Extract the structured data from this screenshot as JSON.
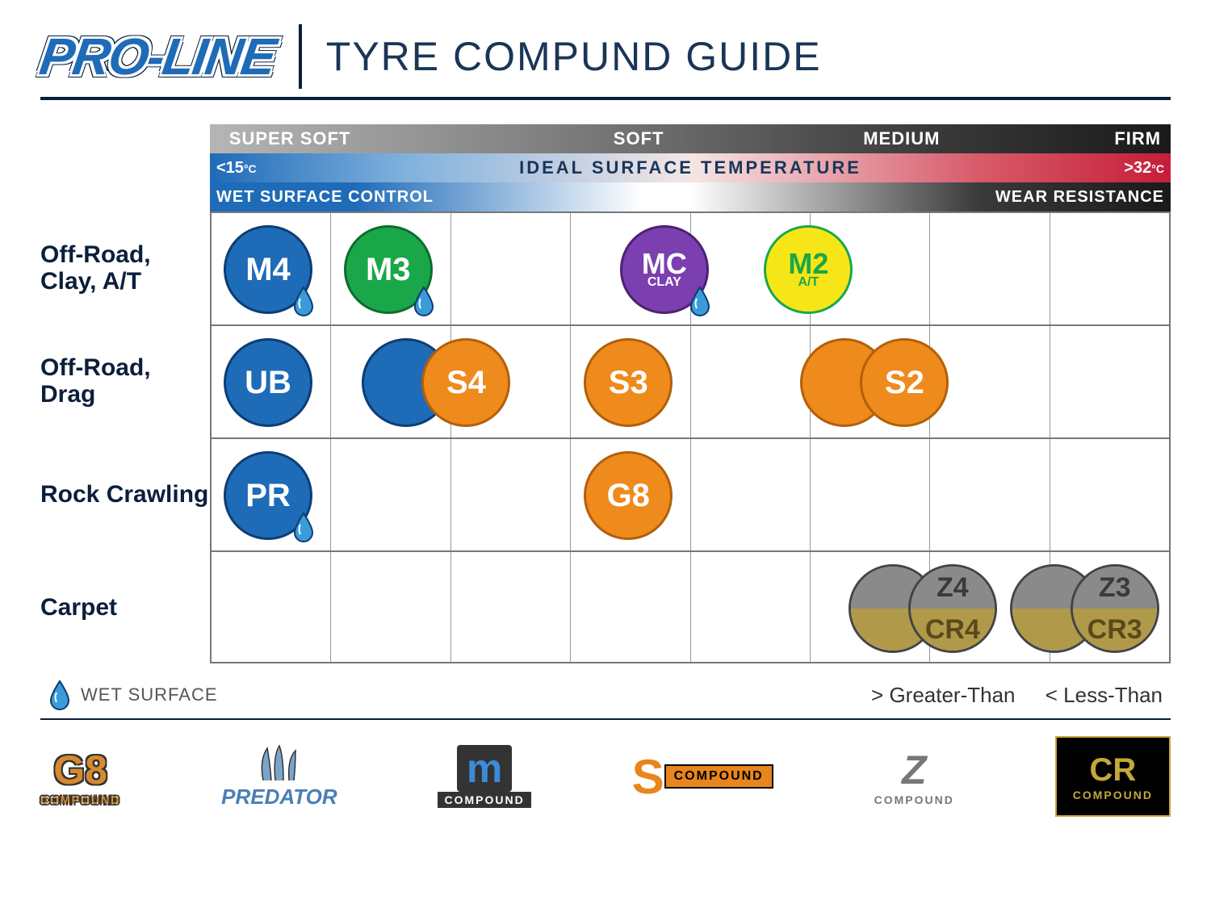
{
  "header": {
    "logo_text": "PRO-LINE",
    "title": "TYRE COMPUND GUIDE"
  },
  "hardness_scale": {
    "labels": [
      "SUPER SOFT",
      "SOFT",
      "MEDIUM",
      "FIRM"
    ],
    "positions_pct": [
      2,
      42,
      68,
      94
    ],
    "grad_bg": "linear-gradient(90deg, #b5b5b5 0%, #888 30%, #666 50%, #3a3a3a 75%, #1a1a1a 100%)"
  },
  "temp_scale": {
    "left_label": "<15",
    "right_label": ">32",
    "unit": "°C",
    "mid_label": "IDEAL SURFACE TEMPERATURE",
    "gradient": "linear-gradient(90deg, #1e6bb8 0%, #7fb0dd 20%, #f5e6e6 50%, #d85a6a 80%, #c41e3a 100%)"
  },
  "dual_scale": {
    "left_label": "WET SURFACE CONTROL",
    "right_label": "WEAR RESISTANCE"
  },
  "row_labels": [
    "Off-Road, Clay, A/T",
    "Off-Road, Drag",
    "Rock Crawling",
    "Carpet"
  ],
  "columns": 8,
  "grid_border_color": "#777777",
  "compounds": {
    "row0": [
      {
        "id": "m4",
        "label": "M4",
        "sub": "",
        "fill": "#1e6bb8",
        "border": "#0c3d73",
        "text": "#ffffff",
        "col": 0,
        "wet": true
      },
      {
        "id": "m3",
        "label": "M3",
        "sub": "",
        "fill": "#1aa74a",
        "border": "#0d6d2d",
        "text": "#ffffff",
        "col": 1,
        "wet": true
      },
      {
        "id": "mc",
        "label": "MC",
        "sub": "CLAY",
        "fill": "#7b3fb0",
        "border": "#4d2173",
        "text": "#ffffff",
        "col": 3.3,
        "wet": true
      },
      {
        "id": "m2",
        "label": "M2",
        "sub": "A/T",
        "fill": "#f7e617",
        "border": "#1aa74a",
        "text": "#1aa74a",
        "col": 4.5,
        "wet": false
      }
    ],
    "row1": [
      {
        "id": "ub",
        "label": "UB",
        "sub": "",
        "fill": "#1e6bb8",
        "border": "#0c3d73",
        "text": "#ffffff",
        "col": 0,
        "wet": false
      },
      {
        "id": "s4bg",
        "label": "",
        "sub": "",
        "fill": "#1e6bb8",
        "border": "#0c3d73",
        "text": "#ffffff",
        "col": 1.15,
        "wet": false
      },
      {
        "id": "s4",
        "label": "S4",
        "sub": "",
        "fill": "#ef8a1c",
        "border": "#b35f0a",
        "text": "#ffffff",
        "col": 1.65,
        "wet": false
      },
      {
        "id": "s3",
        "label": "S3",
        "sub": "",
        "fill": "#ef8a1c",
        "border": "#b35f0a",
        "text": "#ffffff",
        "col": 3,
        "wet": false
      },
      {
        "id": "s2bg",
        "label": "",
        "sub": "",
        "fill": "#ef8a1c",
        "border": "#b35f0a",
        "text": "#ffffff",
        "col": 4.8,
        "wet": false
      },
      {
        "id": "s2",
        "label": "S2",
        "sub": "",
        "fill": "#ef8a1c",
        "border": "#b35f0a",
        "text": "#ffffff",
        "col": 5.3,
        "wet": false
      }
    ],
    "row2": [
      {
        "id": "pr",
        "label": "PR",
        "sub": "",
        "fill": "#1e6bb8",
        "border": "#0c3d73",
        "text": "#ffffff",
        "col": 0,
        "wet": true
      },
      {
        "id": "g8",
        "label": "G8",
        "sub": "",
        "fill": "#ef8a1c",
        "border": "#b35f0a",
        "text": "#ffffff",
        "col": 3,
        "wet": false
      }
    ],
    "row3": [
      {
        "id": "z4",
        "label_top": "Z4",
        "label_bot": "CR4",
        "top_fill": "#8a8a8a",
        "bot_fill": "#b09a4a",
        "top_text": "#3a3a3a",
        "bot_text": "#5a4a1a",
        "col": 5.7,
        "half": true
      },
      {
        "id": "z4b",
        "label_top": "",
        "label_bot": "",
        "top_fill": "#8a8a8a",
        "bot_fill": "#b09a4a",
        "top_text": "#3a3a3a",
        "bot_text": "#5a4a1a",
        "col": 5.2,
        "half": true
      },
      {
        "id": "z3",
        "label_top": "Z3",
        "label_bot": "CR3",
        "top_fill": "#8a8a8a",
        "bot_fill": "#b09a4a",
        "top_text": "#3a3a3a",
        "bot_text": "#5a4a1a",
        "col": 7.05,
        "half": true
      },
      {
        "id": "z3b",
        "label_top": "",
        "label_bot": "",
        "top_fill": "#8a8a8a",
        "bot_fill": "#b09a4a",
        "top_text": "#3a3a3a",
        "bot_text": "#5a4a1a",
        "col": 6.55,
        "half": true
      }
    ]
  },
  "legend": {
    "wet_label": "WET SURFACE",
    "greater": "> Greater-Than",
    "less": "< Less-Than",
    "drop_fill": "#3a9bd8",
    "drop_stroke": "#0c3d73"
  },
  "brands": [
    {
      "main": "G8",
      "sub": "COMPOUND",
      "cls": "b-g8"
    },
    {
      "main": "PREDATOR",
      "sub": "",
      "cls": "b-pred"
    },
    {
      "main": "m",
      "sub": "COMPOUND",
      "cls": "b-m"
    },
    {
      "main": "S",
      "sub": "COMPOUND",
      "cls": "b-s"
    },
    {
      "main": "Z",
      "sub": "COMPOUND",
      "cls": "b-z"
    },
    {
      "main": "CR",
      "sub": "COMPOUND",
      "cls": "b-cr"
    }
  ]
}
